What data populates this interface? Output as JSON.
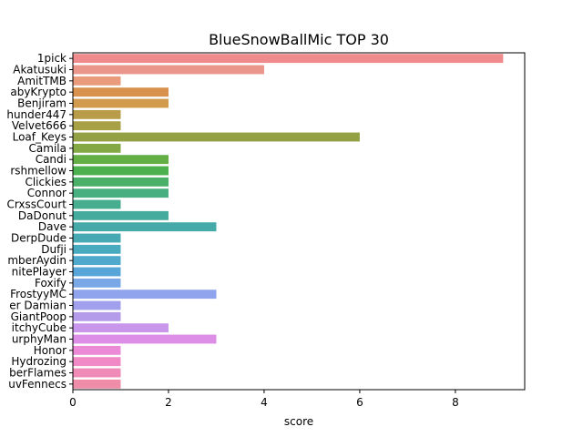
{
  "chart_data": {
    "type": "bar",
    "orientation": "horizontal",
    "title": "BlueSnowBallMic TOP 30",
    "xlabel": "score",
    "ylabel": "",
    "xlim": [
      0,
      9.45
    ],
    "xticks": [
      0,
      2,
      4,
      6,
      8
    ],
    "grid": false,
    "categories": [
      "1pick",
      "Akatusuki",
      "AmitTMB",
      "abyKrypto",
      "Benjiram",
      "hunder447",
      "Velvet666",
      "Loaf_Keys",
      "Camila",
      "Candi",
      "rshmellow",
      "Clickies",
      "Connor",
      "CrxssCourt",
      "DaDonut",
      "Dave",
      "DerpDude",
      "Dufji",
      "mberAydin",
      "nitePlayer",
      "Foxify",
      "FrostyyMC",
      "er Damian",
      "GiantPoop",
      "itchyCube",
      "urphyMan",
      "Honor",
      "Hydrozing",
      "berFlames",
      "uvFennecs"
    ],
    "values": [
      9,
      4,
      1,
      2,
      2,
      1,
      1,
      6,
      1,
      2,
      2,
      2,
      2,
      1,
      2,
      3,
      1,
      1,
      1,
      1,
      1,
      3,
      1,
      1,
      2,
      3,
      1,
      1,
      1,
      1
    ],
    "colors": [
      "#f08b8d",
      "#eb968b",
      "#e99b7c",
      "#d8924d",
      "#d19a4c",
      "#b89c4a",
      "#a8a045",
      "#93a044",
      "#82a944",
      "#63ae45",
      "#4cb04f",
      "#4ab068",
      "#48b080",
      "#47ad8f",
      "#45ac9d",
      "#45aaa8",
      "#46a9b4",
      "#48aabf",
      "#4ea9cc",
      "#58a6d9",
      "#7aa8e6",
      "#8fa4ed",
      "#a1a0ed",
      "#b59cea",
      "#c896ea",
      "#dd8ee6",
      "#ec8ad8",
      "#f089c6",
      "#f08bb8",
      "#ef8ca8"
    ]
  }
}
